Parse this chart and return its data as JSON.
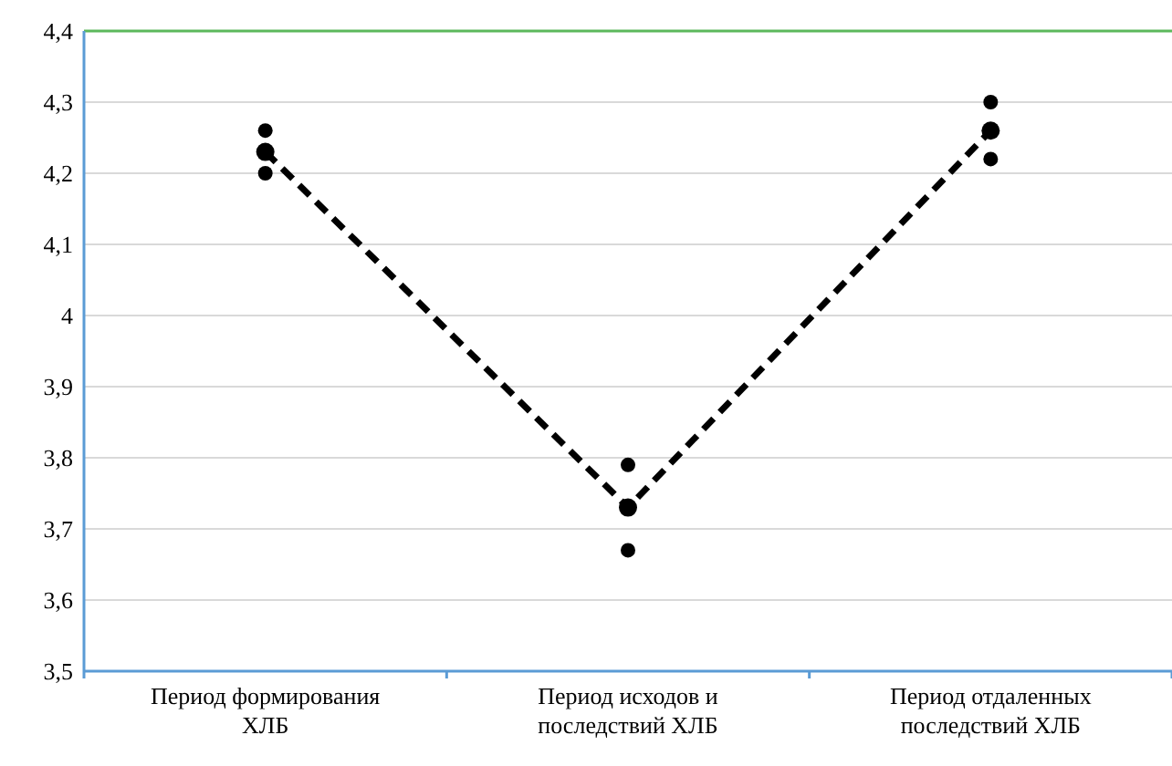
{
  "chart_data": {
    "type": "line",
    "categories": [
      "Период формирования\nХЛБ",
      "Период исходов и\nпоследствий ХЛБ",
      "Период отдаленных\nпоследствий ХЛБ"
    ],
    "series": [
      {
        "color": "#000000",
        "values": [
          4.23,
          3.73,
          4.26
        ],
        "line_style": "dashed",
        "marker": "circle"
      },
      {
        "type": "scatter",
        "color": "#000000",
        "values": [
          4.26,
          3.79,
          4.3
        ],
        "marker": "circle"
      },
      {
        "type": "scatter",
        "color": "#000000",
        "values": [
          4.2,
          3.67,
          4.22
        ],
        "marker": "circle"
      }
    ],
    "ylim": [
      3.5,
      4.4
    ],
    "yticks": [
      {
        "value": 3.5,
        "label": "3,5"
      },
      {
        "value": 3.6,
        "label": "3,6"
      },
      {
        "value": 3.7,
        "label": "3,7"
      },
      {
        "value": 3.8,
        "label": "3,8"
      },
      {
        "value": 3.9,
        "label": "3,9"
      },
      4,
      {
        "value": 4.1,
        "label": "4,1"
      },
      {
        "value": 4.2,
        "label": "4,2"
      },
      {
        "value": 4.3,
        "label": "4,3"
      },
      {
        "value": 4.4,
        "label": "4,4"
      }
    ],
    "grid": "y",
    "ref_lines": [
      {
        "axis": "y",
        "value": 4.4,
        "color": "#5cb85c"
      }
    ]
  }
}
